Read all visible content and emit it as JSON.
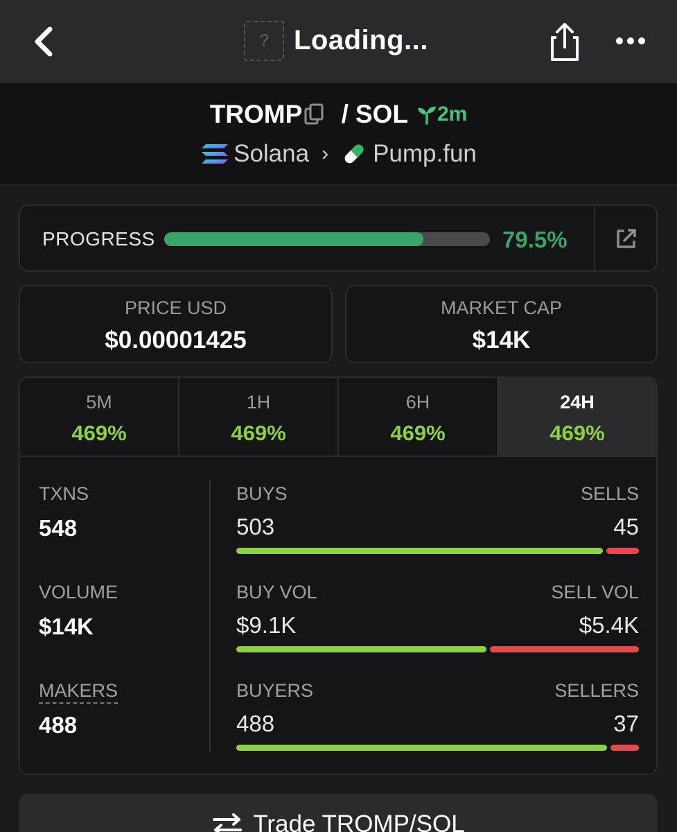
{
  "topbar": {
    "title": "Loading...",
    "placeholder_glyph": "?",
    "icons": [
      "back-chevron-icon",
      "token-placeholder-icon",
      "share-icon",
      "more-icon"
    ]
  },
  "pair": {
    "base": "TROMP",
    "separator": "/",
    "quote": "SOL",
    "age": "2m",
    "chain": "Solana",
    "dex": "Pump.fun",
    "chain_separator": "›"
  },
  "progress": {
    "label": "PROGRESS",
    "value": "79.5%",
    "fraction": 0.795
  },
  "price": {
    "label": "PRICE USD",
    "value": "$0.00001425"
  },
  "market_cap": {
    "label": "MARKET CAP",
    "value": "$14K"
  },
  "periods": [
    {
      "label": "5M",
      "change": "469%"
    },
    {
      "label": "1H",
      "change": "469%"
    },
    {
      "label": "6H",
      "change": "469%"
    },
    {
      "label": "24H",
      "change": "469%",
      "active": true
    }
  ],
  "stats": {
    "txns": {
      "label": "TXNS",
      "value": "548"
    },
    "volume": {
      "label": "VOLUME",
      "value": "$14K"
    },
    "makers": {
      "label": "MAKERS",
      "value": "488"
    },
    "buys": {
      "label": "BUYS",
      "value": "503",
      "n": 503
    },
    "sells": {
      "label": "SELLS",
      "value": "45",
      "n": 45
    },
    "buy_vol": {
      "label": "BUY VOL",
      "value": "$9.1K",
      "n": 9.1
    },
    "sell_vol": {
      "label": "SELL VOL",
      "value": "$5.4K",
      "n": 5.4
    },
    "buyers": {
      "label": "BUYERS",
      "value": "488",
      "n": 488
    },
    "sellers": {
      "label": "SELLERS",
      "value": "37",
      "n": 37
    }
  },
  "trade_button": {
    "label": "Trade TROMP/SOL"
  },
  "colors": {
    "accent_green": "#3aa365",
    "buy_green": "#8ccf48",
    "sell_red": "#e5484d",
    "background": "#151517"
  }
}
